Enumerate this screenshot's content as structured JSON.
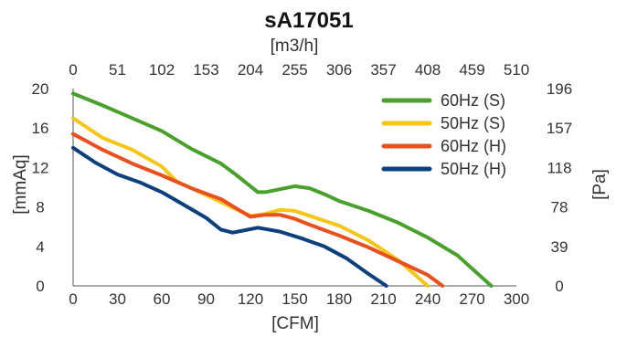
{
  "chart_data": {
    "type": "line",
    "title": "sA17051",
    "xlabel": "[CFM]",
    "x2label": "[m3/h]",
    "ylabel": "[mmAq]",
    "y2label": "[Pa]",
    "xlim": [
      0,
      300
    ],
    "ylim": [
      0,
      20
    ],
    "x_ticks": [
      0,
      30,
      60,
      90,
      120,
      150,
      180,
      210,
      240,
      270,
      300
    ],
    "y_ticks": [
      0,
      4,
      8,
      12,
      16,
      20
    ],
    "x2_ticks": [
      0,
      51,
      102,
      153,
      204,
      255,
      306,
      357,
      408,
      459,
      510
    ],
    "y2_ticks": [
      0,
      39,
      78,
      118,
      157,
      196
    ],
    "grid": false,
    "legend_position": "top-right",
    "series": [
      {
        "name": "60Hz (S)",
        "color": "#4aa02c",
        "x": [
          0,
          20,
          40,
          60,
          80,
          100,
          110,
          120,
          125,
          130,
          140,
          150,
          160,
          170,
          180,
          200,
          220,
          240,
          260,
          283
        ],
        "y": [
          19.5,
          18.3,
          17.0,
          15.7,
          13.9,
          12.4,
          11.3,
          10.1,
          9.5,
          9.5,
          9.8,
          10.1,
          9.9,
          9.3,
          8.6,
          7.6,
          6.4,
          4.9,
          3.1,
          0.0
        ]
      },
      {
        "name": "50Hz (S)",
        "color": "#f5c618",
        "x": [
          0,
          20,
          40,
          60,
          70,
          90,
          110,
          120,
          130,
          140,
          150,
          160,
          180,
          200,
          220,
          240
        ],
        "y": [
          17.0,
          15.0,
          13.8,
          12.1,
          10.6,
          9.2,
          7.8,
          7.1,
          7.3,
          7.7,
          7.6,
          7.1,
          6.1,
          4.6,
          2.6,
          0.0
        ]
      },
      {
        "name": "60Hz (H)",
        "color": "#e8501e",
        "x": [
          0,
          20,
          40,
          60,
          80,
          100,
          110,
          120,
          130,
          140,
          150,
          160,
          180,
          200,
          220,
          240,
          250
        ],
        "y": [
          15.4,
          13.8,
          12.4,
          11.2,
          9.9,
          8.8,
          7.9,
          7.0,
          7.2,
          7.2,
          6.8,
          6.2,
          5.1,
          3.9,
          2.5,
          1.1,
          0.0
        ]
      },
      {
        "name": "50Hz (H)",
        "color": "#0b3f7e",
        "x": [
          0,
          15,
          30,
          45,
          60,
          75,
          90,
          100,
          108,
          115,
          125,
          140,
          155,
          170,
          185,
          200,
          212
        ],
        "y": [
          14.0,
          12.5,
          11.3,
          10.5,
          9.5,
          8.2,
          6.9,
          5.7,
          5.4,
          5.6,
          5.9,
          5.5,
          4.8,
          4.0,
          2.8,
          1.2,
          0.0
        ]
      }
    ]
  }
}
